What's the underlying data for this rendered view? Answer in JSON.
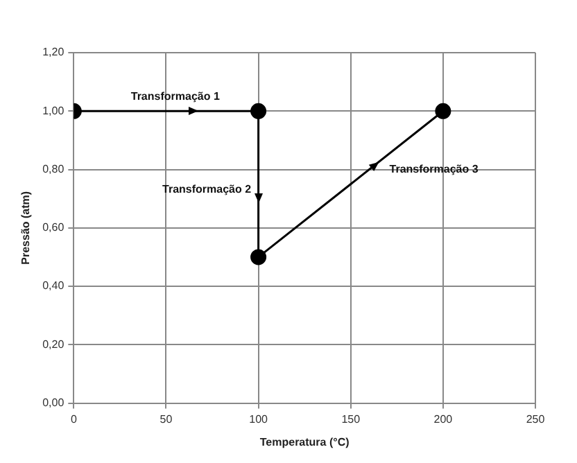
{
  "chart_data": {
    "type": "line",
    "xlabel": "Temperatura (°C)",
    "ylabel": "Pressão (atm)",
    "x": [
      0,
      100,
      100,
      200
    ],
    "series": [
      {
        "color": "#000000",
        "values": [
          1.0,
          1.0,
          0.5,
          1.0
        ]
      }
    ],
    "xlim": [
      0,
      250
    ],
    "xticks": [
      0,
      50,
      100,
      150,
      200,
      250
    ],
    "ylim": [
      0,
      1.2
    ],
    "yticks": [
      {
        "value": 0,
        "label": "0,00"
      },
      {
        "value": 0.2,
        "label": "0,20"
      },
      {
        "value": 0.4,
        "label": "0,40"
      },
      {
        "value": 0.6,
        "label": "0,60"
      },
      {
        "value": 0.8,
        "label": "0,80"
      },
      {
        "value": 1.0,
        "label": "1,00"
      },
      {
        "value": 1.2,
        "label": "1,20"
      }
    ],
    "grid": true,
    "marker": "circle",
    "line_style": "solid",
    "legend": false,
    "annotations": [
      "Transformação 1",
      "Transformação 2",
      "Transformação 3"
    ]
  }
}
